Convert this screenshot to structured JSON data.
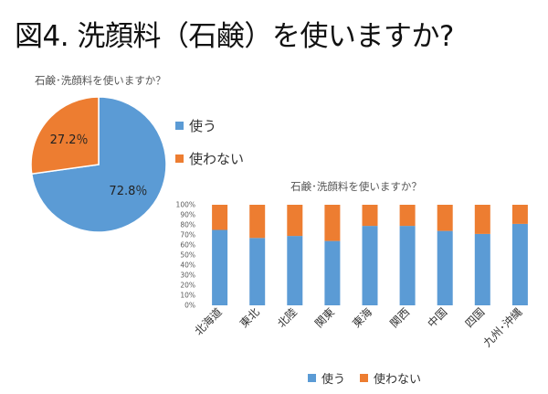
{
  "page": {
    "title": "図4. 洗顔料（石鹸）を使いますか?"
  },
  "colors": {
    "use": "#5B9BD5",
    "not_use": "#ED7D31",
    "text": "#333333",
    "grid": "#d9d9d9"
  },
  "chart_data": [
    {
      "type": "pie",
      "title": "石鹸･洗顔料を使いますか？",
      "categories": [
        "使う",
        "使わない"
      ],
      "values": [
        72.8,
        27.2
      ],
      "value_labels": [
        "72.8％",
        "27.2％"
      ],
      "legend_position": "right"
    },
    {
      "type": "bar",
      "stacked": true,
      "percent_stacked": true,
      "title": "石鹸･洗顔料を使いますか？",
      "categories": [
        "北海道",
        "東北",
        "北陸",
        "関東",
        "東海",
        "関西",
        "中国",
        "四国",
        "九州･沖縄"
      ],
      "series": [
        {
          "name": "使う",
          "values": [
            75,
            67,
            69,
            64,
            79,
            79,
            74,
            71,
            81
          ]
        },
        {
          "name": "使わない",
          "values": [
            25,
            33,
            31,
            36,
            21,
            21,
            26,
            29,
            19
          ]
        }
      ],
      "yticks": [
        "0%",
        "10%",
        "20%",
        "30%",
        "40%",
        "50%",
        "60%",
        "70%",
        "80%",
        "90%",
        "100%"
      ],
      "ylim": [
        0,
        100
      ],
      "legend_position": "bottom"
    }
  ]
}
